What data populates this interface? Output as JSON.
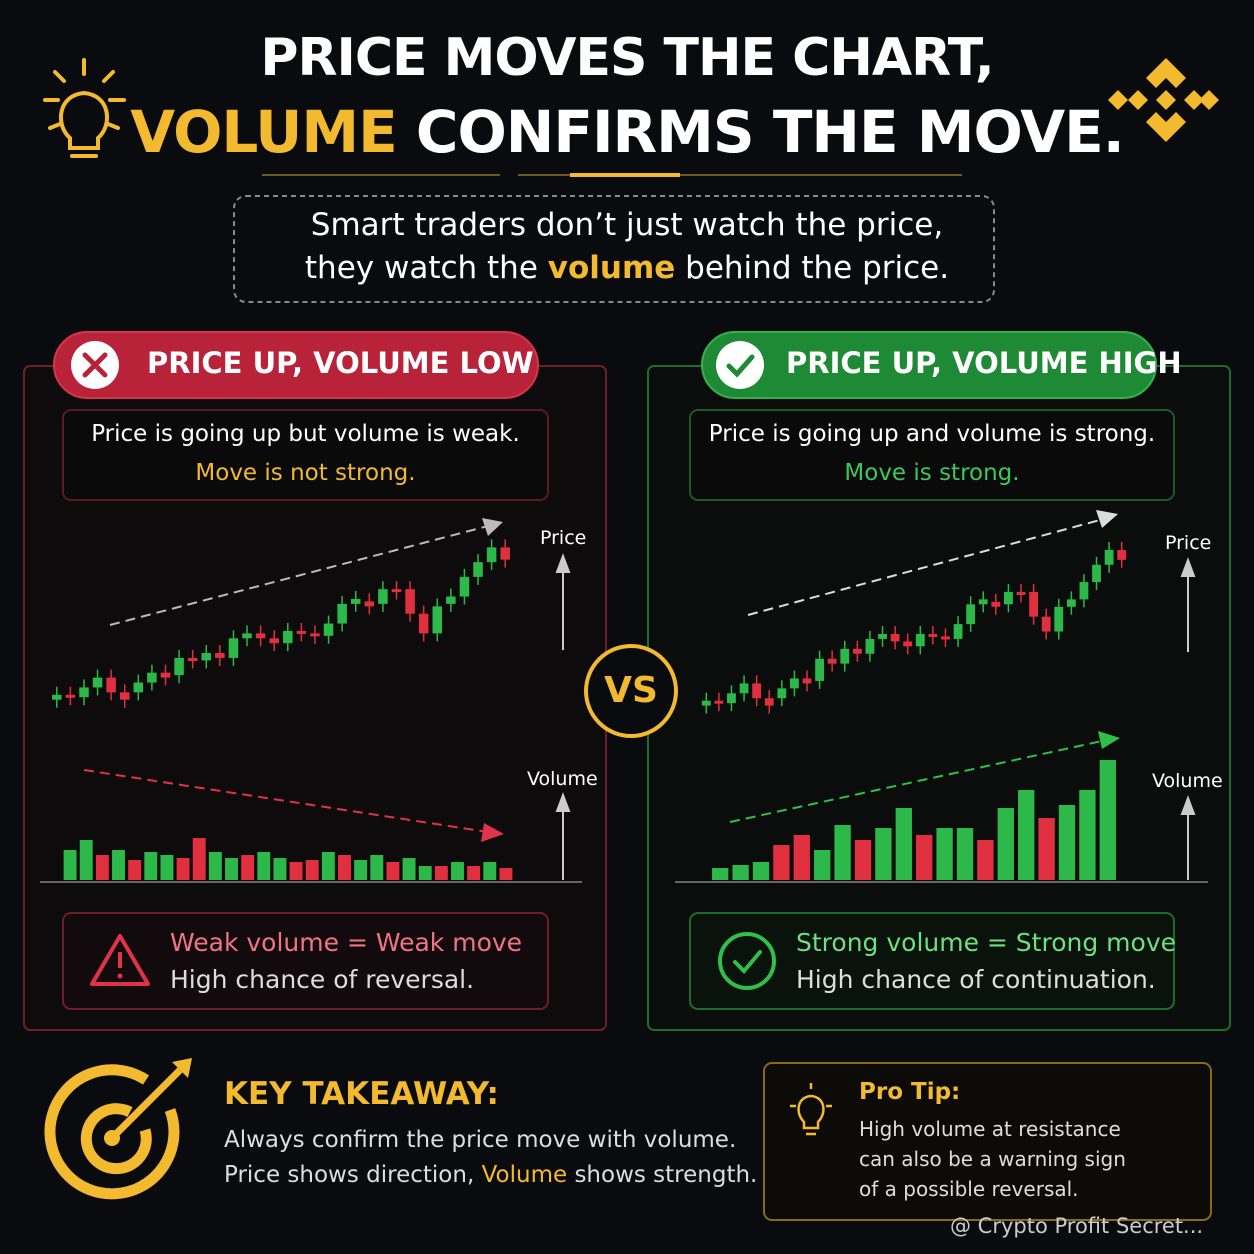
{
  "header": {
    "title_line1": "PRICE MOVES THE CHART,",
    "title_highlight": "VOLUME",
    "title_rest": "CONFIRMS THE MOVE."
  },
  "intro": {
    "line1": "Smart traders don’t just watch the price,",
    "line2_start": "they watch the",
    "line2_highlight": "volume",
    "line2_end": "behind the price."
  },
  "left": {
    "badge": "PRICE UP, VOLUME LOW",
    "desc": "Price is going up but volume is weak.",
    "verdict": "Move is not strong.",
    "price_label": "Price",
    "volume_label": "Volume",
    "note_line1": "Weak volume = Weak move",
    "note_line2": "High chance of reversal.",
    "candles": [
      [
        5,
        7
      ],
      [
        7,
        6
      ],
      [
        6,
        10
      ],
      [
        10,
        14
      ],
      [
        14,
        8
      ],
      [
        8,
        5
      ],
      [
        8,
        12
      ],
      [
        12,
        16
      ],
      [
        16,
        14
      ],
      [
        15,
        22
      ],
      [
        22,
        21
      ],
      [
        21,
        24
      ],
      [
        24,
        22
      ],
      [
        22,
        30
      ],
      [
        30,
        32
      ],
      [
        32,
        30
      ],
      [
        30,
        28
      ],
      [
        28,
        33
      ],
      [
        33,
        32
      ],
      [
        32,
        31
      ],
      [
        31,
        36
      ],
      [
        36,
        44
      ],
      [
        44,
        46
      ],
      [
        45,
        43
      ],
      [
        44,
        50
      ],
      [
        50,
        49
      ],
      [
        50,
        40
      ],
      [
        40,
        32
      ],
      [
        32,
        43
      ],
      [
        44,
        47
      ],
      [
        47,
        55
      ],
      [
        55,
        61
      ],
      [
        61,
        67
      ],
      [
        67,
        62
      ]
    ],
    "volume": [
      30,
      40,
      25,
      30,
      20,
      28,
      25,
      22,
      42,
      28,
      22,
      25,
      28,
      22,
      18,
      20,
      28,
      25,
      20,
      25,
      18,
      22,
      14,
      14,
      18,
      14,
      18,
      12
    ],
    "volume_up": [
      true,
      true,
      false,
      true,
      false,
      true,
      true,
      false,
      false,
      true,
      true,
      false,
      true,
      true,
      false,
      false,
      true,
      false,
      true,
      true,
      false,
      true,
      true,
      false,
      true,
      false,
      true,
      false
    ]
  },
  "right": {
    "badge": "PRICE UP, VOLUME HIGH",
    "desc": "Price is going up and volume is strong.",
    "verdict": "Move is strong.",
    "price_label": "Price",
    "volume_label": "Volume",
    "note_line1": "Strong volume = Strong move",
    "note_line2": "High chance of continuation.",
    "candles": [
      [
        5,
        7
      ],
      [
        7,
        6
      ],
      [
        6,
        10
      ],
      [
        10,
        14
      ],
      [
        14,
        8
      ],
      [
        8,
        5
      ],
      [
        8,
        12
      ],
      [
        12,
        16
      ],
      [
        16,
        14
      ],
      [
        15,
        24
      ],
      [
        24,
        22
      ],
      [
        22,
        28
      ],
      [
        28,
        26
      ],
      [
        26,
        32
      ],
      [
        32,
        34
      ],
      [
        34,
        31
      ],
      [
        31,
        29
      ],
      [
        29,
        34
      ],
      [
        34,
        33
      ],
      [
        33,
        32
      ],
      [
        32,
        38
      ],
      [
        38,
        46
      ],
      [
        46,
        48
      ],
      [
        47,
        45
      ],
      [
        46,
        51
      ],
      [
        51,
        50
      ],
      [
        51,
        41
      ],
      [
        41,
        35
      ],
      [
        35,
        45
      ],
      [
        45,
        48
      ],
      [
        48,
        55
      ],
      [
        55,
        62
      ],
      [
        62,
        68
      ],
      [
        68,
        64
      ]
    ],
    "volume": [
      12,
      15,
      18,
      35,
      45,
      30,
      55,
      40,
      52,
      72,
      45,
      52,
      52,
      40,
      72,
      90,
      62,
      75,
      90,
      120
    ],
    "volume_up": [
      true,
      true,
      true,
      false,
      false,
      true,
      true,
      false,
      true,
      true,
      false,
      true,
      true,
      false,
      true,
      true,
      false,
      true,
      true,
      true
    ]
  },
  "vs": "VS",
  "takeaway": {
    "title": "KEY TAKEAWAY:",
    "line1": "Always confirm the price move with volume.",
    "line2_start": "Price shows direction,",
    "line2_highlight": "Volume",
    "line2_end": "shows strength."
  },
  "tip": {
    "title": "Pro Tip:",
    "lines": [
      "High volume at resistance",
      "can also be a warning sign",
      "of a possible reversal."
    ]
  },
  "watermark": "@ Crypto Profit Secret..."
}
